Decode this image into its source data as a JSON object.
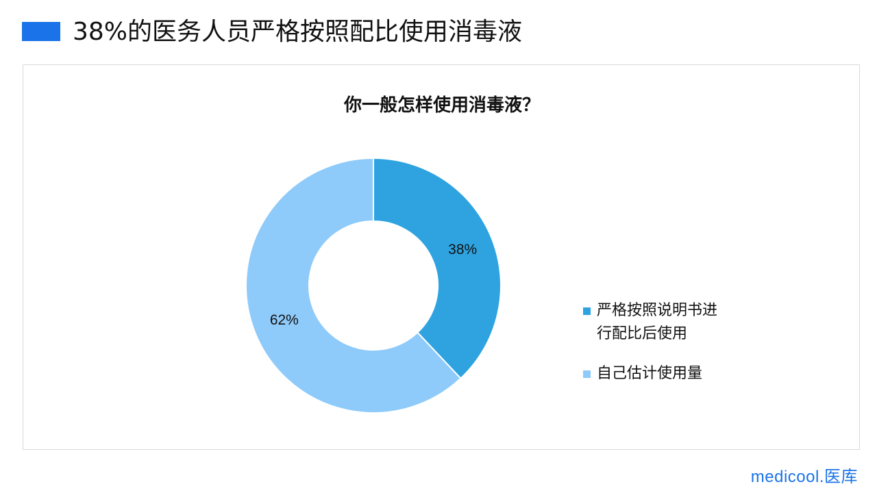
{
  "header": {
    "title": "38%的医务人员严格按照配比使用消毒液",
    "accent_color": "#1a73e8"
  },
  "chart_data": {
    "type": "pie",
    "donut": true,
    "title": "你一般怎样使用消毒液？",
    "series": [
      {
        "name": "严格按照说明书进行配比后使用",
        "value": 38,
        "label": "38%",
        "color": "#2ea3e0"
      },
      {
        "name": "自己估计使用量",
        "value": 62,
        "label": "62%",
        "color": "#8ecbfa"
      }
    ],
    "legend_position": "right"
  },
  "brand": {
    "text": "medicool.医库"
  }
}
